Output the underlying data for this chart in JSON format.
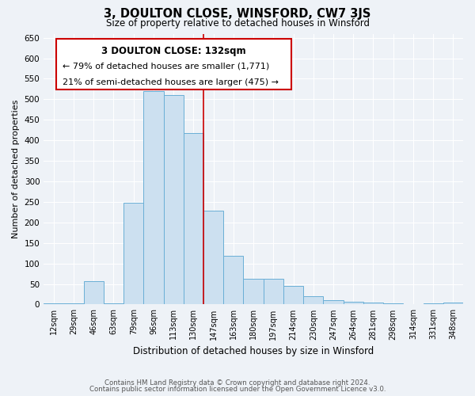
{
  "title": "3, DOULTON CLOSE, WINSFORD, CW7 3JS",
  "subtitle": "Size of property relative to detached houses in Winsford",
  "xlabel": "Distribution of detached houses by size in Winsford",
  "ylabel": "Number of detached properties",
  "bin_labels": [
    "12sqm",
    "29sqm",
    "46sqm",
    "63sqm",
    "79sqm",
    "96sqm",
    "113sqm",
    "130sqm",
    "147sqm",
    "163sqm",
    "180sqm",
    "197sqm",
    "214sqm",
    "230sqm",
    "247sqm",
    "264sqm",
    "281sqm",
    "298sqm",
    "314sqm",
    "331sqm",
    "348sqm"
  ],
  "bar_values": [
    2,
    3,
    57,
    3,
    248,
    520,
    510,
    418,
    228,
    118,
    63,
    63,
    45,
    20,
    10,
    7,
    4,
    2,
    0,
    2,
    5
  ],
  "bar_color": "#cce0f0",
  "bar_edge_color": "#6aafd6",
  "highlight_line_x_label": "130sqm",
  "highlight_line_color": "#cc0000",
  "annotation_title": "3 DOULTON CLOSE: 132sqm",
  "annotation_line1": "← 79% of detached houses are smaller (1,771)",
  "annotation_line2": "21% of semi-detached houses are larger (475) →",
  "annotation_box_color": "#ffffff",
  "annotation_box_edge": "#cc0000",
  "ylim": [
    0,
    660
  ],
  "yticks": [
    0,
    50,
    100,
    150,
    200,
    250,
    300,
    350,
    400,
    450,
    500,
    550,
    600,
    650
  ],
  "footer_line1": "Contains HM Land Registry data © Crown copyright and database right 2024.",
  "footer_line2": "Contains public sector information licensed under the Open Government Licence v3.0.",
  "bg_color": "#eef2f7"
}
